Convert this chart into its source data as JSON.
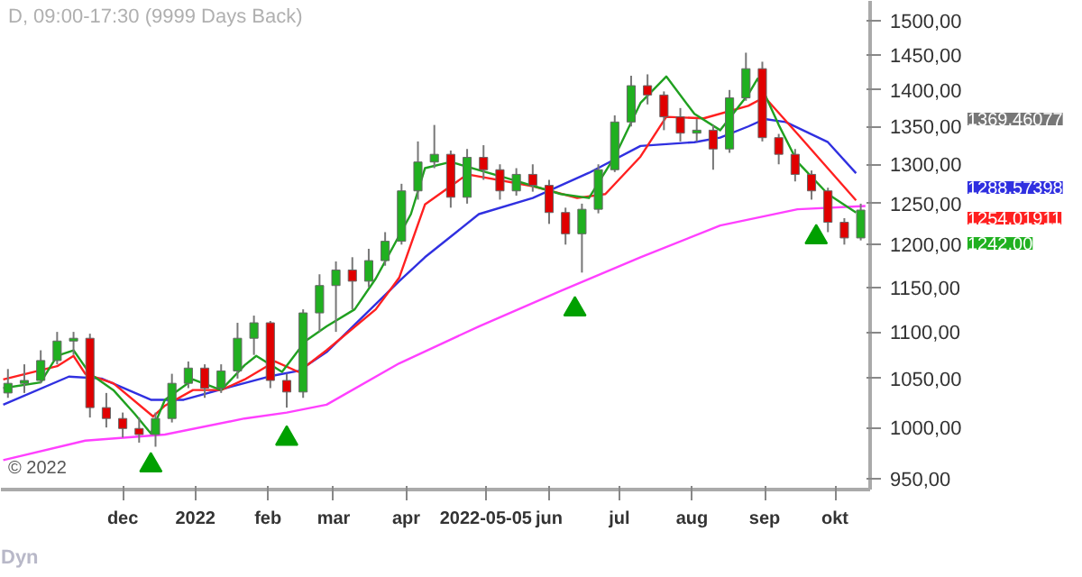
{
  "chart_data": {
    "type": "candlestick",
    "title": "D, 09:00-17:30 (9999 Days Back)",
    "log": true,
    "x": [
      "2021-10-13",
      "2021-10-20",
      "2021-10-27",
      "2021-11-03",
      "2021-11-10",
      "2021-11-17",
      "2021-11-24",
      "2021-12-01",
      "2021-12-08",
      "2021-12-15",
      "2021-12-22",
      "2021-12-29",
      "2022-01-05",
      "2022-01-12",
      "2022-01-19",
      "2022-01-26",
      "2022-02-02",
      "2022-02-09",
      "2022-02-16",
      "2022-02-23",
      "2022-03-02",
      "2022-03-09",
      "2022-03-16",
      "2022-03-23",
      "2022-03-30",
      "2022-04-06",
      "2022-04-13",
      "2022-04-20",
      "2022-04-27",
      "2022-05-04",
      "2022-05-11",
      "2022-05-18",
      "2022-05-25",
      "2022-06-01",
      "2022-06-08",
      "2022-06-15",
      "2022-06-22",
      "2022-06-29",
      "2022-07-06",
      "2022-07-13",
      "2022-07-20",
      "2022-07-27",
      "2022-08-03",
      "2022-08-10",
      "2022-08-17",
      "2022-08-24",
      "2022-08-31",
      "2022-09-07",
      "2022-09-14",
      "2022-09-21",
      "2022-09-28",
      "2022-10-05",
      "2022-10-12"
    ],
    "ohlc": [
      [
        1035,
        1060,
        1030,
        1045
      ],
      [
        1045,
        1065,
        1035,
        1048
      ],
      [
        1048,
        1080,
        1045,
        1069
      ],
      [
        1069,
        1100,
        1065,
        1090
      ],
      [
        1090,
        1100,
        1075,
        1093
      ],
      [
        1093,
        1098,
        1010,
        1020
      ],
      [
        1020,
        1035,
        1000,
        1009
      ],
      [
        1009,
        1015,
        990,
        999
      ],
      [
        999,
        1010,
        985,
        993
      ],
      [
        993,
        1015,
        981,
        1009
      ],
      [
        1009,
        1055,
        1005,
        1045
      ],
      [
        1045,
        1068,
        1040,
        1061
      ],
      [
        1061,
        1065,
        1030,
        1040
      ],
      [
        1040,
        1065,
        1035,
        1058
      ],
      [
        1058,
        1110,
        1050,
        1093
      ],
      [
        1093,
        1118,
        1075,
        1110
      ],
      [
        1110,
        1112,
        1040,
        1048
      ],
      [
        1048,
        1055,
        1020,
        1036
      ],
      [
        1036,
        1125,
        1030,
        1121
      ],
      [
        1121,
        1165,
        1100,
        1152
      ],
      [
        1152,
        1180,
        1100,
        1170
      ],
      [
        1170,
        1185,
        1125,
        1157
      ],
      [
        1157,
        1195,
        1150,
        1181
      ],
      [
        1181,
        1215,
        1175,
        1204
      ],
      [
        1204,
        1275,
        1200,
        1266
      ],
      [
        1266,
        1330,
        1255,
        1303
      ],
      [
        1303,
        1352,
        1295,
        1313
      ],
      [
        1313,
        1318,
        1245,
        1258
      ],
      [
        1258,
        1320,
        1250,
        1309
      ],
      [
        1309,
        1325,
        1280,
        1293
      ],
      [
        1293,
        1300,
        1255,
        1266
      ],
      [
        1266,
        1295,
        1260,
        1287
      ],
      [
        1287,
        1300,
        1265,
        1273
      ],
      [
        1273,
        1280,
        1225,
        1239
      ],
      [
        1239,
        1245,
        1200,
        1213
      ],
      [
        1213,
        1250,
        1167,
        1243
      ],
      [
        1243,
        1300,
        1238,
        1293
      ],
      [
        1293,
        1365,
        1290,
        1356
      ],
      [
        1356,
        1420,
        1350,
        1406
      ],
      [
        1406,
        1422,
        1380,
        1393
      ],
      [
        1393,
        1398,
        1345,
        1363
      ],
      [
        1363,
        1375,
        1330,
        1341
      ],
      [
        1341,
        1360,
        1330,
        1345
      ],
      [
        1345,
        1352,
        1293,
        1320
      ],
      [
        1320,
        1400,
        1315,
        1389
      ],
      [
        1389,
        1453,
        1385,
        1430
      ],
      [
        1430,
        1440,
        1330,
        1335
      ],
      [
        1335,
        1340,
        1300,
        1313
      ],
      [
        1313,
        1320,
        1278,
        1287
      ],
      [
        1287,
        1292,
        1255,
        1266
      ],
      [
        1266,
        1270,
        1215,
        1227
      ],
      [
        1227,
        1232,
        1200,
        1208
      ],
      [
        1208,
        1250,
        1205,
        1242
      ]
    ],
    "colors": [
      "#20b020",
      "#20b020",
      "#20b020",
      "#20b020",
      "#20b020",
      "#e00000",
      "#e00000",
      "#e00000",
      "#e00000",
      "#20b020",
      "#20b020",
      "#20b020",
      "#e00000",
      "#20b020",
      "#20b020",
      "#20b020",
      "#e00000",
      "#e00000",
      "#20b020",
      "#20b020",
      "#20b020",
      "#e00000",
      "#20b020",
      "#20b020",
      "#20b020",
      "#20b020",
      "#20b020",
      "#e00000",
      "#20b020",
      "#e00000",
      "#e00000",
      "#20b020",
      "#e00000",
      "#e00000",
      "#e00000",
      "#20b020",
      "#20b020",
      "#20b020",
      "#20b020",
      "#e00000",
      "#e00000",
      "#e00000",
      "#20b020",
      "#e00000",
      "#20b020",
      "#20b020",
      "#e00000",
      "#e00000",
      "#e00000",
      "#e00000",
      "#e00000",
      "#e00000",
      "#20b020"
    ],
    "series": [
      {
        "type": "line",
        "color": "#ff40ff",
        "x": [
          "2021-10-11",
          "2021-11-15",
          "2021-12-19",
          "2022-01-22",
          "2022-02-09",
          "2022-02-26",
          "2022-03-29",
          "2022-05-02",
          "2022-06-06",
          "2022-07-10",
          "2022-08-13",
          "2022-09-15",
          "2022-10-14"
        ],
        "values": [
          968,
          987,
          993,
          1009,
          1015,
          1023,
          1066,
          1106,
          1146,
          1185,
          1223,
          1243,
          1247
        ]
      },
      {
        "type": "line",
        "color": "#3030e0",
        "x": [
          "2021-10-11",
          "2021-11-08",
          "2021-11-22",
          "2021-12-13",
          "2021-12-27",
          "2022-01-17",
          "2022-02-03",
          "2022-02-14",
          "2022-02-26",
          "2022-03-29",
          "2022-04-09",
          "2022-05-02",
          "2022-05-25",
          "2022-06-18",
          "2022-07-10",
          "2022-08-02",
          "2022-08-13",
          "2022-08-25",
          "2022-09-01",
          "2022-09-10",
          "2022-09-28",
          "2022-10-10"
        ],
        "values": [
          1023,
          1052,
          1050,
          1028,
          1028,
          1042,
          1053,
          1058,
          1078,
          1157,
          1185,
          1237,
          1257,
          1289,
          1324,
          1329,
          1335,
          1350,
          1360,
          1356,
          1329,
          1288.57398
        ]
      },
      {
        "type": "line",
        "color": "#ff2020",
        "x": [
          "2021-10-11",
          "2021-11-03",
          "2021-11-10",
          "2021-11-15",
          "2021-11-27",
          "2021-12-14",
          "2021-12-19",
          "2021-12-31",
          "2022-01-12",
          "2022-01-22",
          "2022-02-04",
          "2022-02-14",
          "2022-02-26",
          "2022-03-19",
          "2022-03-29",
          "2022-04-09",
          "2022-04-27",
          "2022-05-25",
          "2022-06-13",
          "2022-06-25",
          "2022-07-10",
          "2022-07-21",
          "2022-08-06",
          "2022-08-25",
          "2022-09-01",
          "2022-09-15",
          "2022-10-10"
        ],
        "values": [
          1049,
          1063,
          1074,
          1055,
          1045,
          1011,
          1022,
          1038,
          1038,
          1049,
          1068,
          1057,
          1080,
          1125,
          1161,
          1249,
          1287,
          1272,
          1257,
          1262,
          1310,
          1363,
          1361,
          1378,
          1390,
          1340,
          1254.01911
        ]
      },
      {
        "type": "line",
        "color": "#20a020",
        "x": [
          "2021-10-11",
          "2021-10-27",
          "2021-11-03",
          "2021-11-10",
          "2021-11-17",
          "2021-11-27",
          "2021-12-06",
          "2021-12-13",
          "2021-12-19",
          "2021-12-31",
          "2022-01-12",
          "2022-01-22",
          "2022-01-27",
          "2022-02-07",
          "2022-02-17",
          "2022-02-26",
          "2022-03-10",
          "2022-03-19",
          "2022-04-03",
          "2022-04-09",
          "2022-04-20",
          "2022-05-13",
          "2022-06-06",
          "2022-06-18",
          "2022-06-29",
          "2022-07-10",
          "2022-07-21",
          "2022-08-02",
          "2022-08-13",
          "2022-08-25",
          "2022-08-29",
          "2022-09-07",
          "2022-09-15",
          "2022-09-28",
          "2022-10-10"
        ],
        "values": [
          1040,
          1046,
          1074,
          1080,
          1055,
          1038,
          1014,
          994,
          1028,
          1049,
          1038,
          1064,
          1074,
          1057,
          1090,
          1106,
          1125,
          1160,
          1237,
          1295,
          1303,
          1283,
          1262,
          1257,
          1310,
          1382,
          1419,
          1367,
          1345,
          1394,
          1416,
          1352,
          1303,
          1262,
          1239
        ]
      },
      {
        "type": "scatter",
        "marker": "triangle",
        "color": "#00a000",
        "x": [
          "2021-12-13",
          "2022-02-09",
          "2022-06-12",
          "2022-09-23"
        ],
        "values": [
          963,
          989,
          1125,
          1209
        ]
      }
    ],
    "xlim": [
      "2021-10-10",
      "2022-10-16"
    ],
    "xticks": [
      {
        "value": "2021-12-01",
        "label": "dec"
      },
      {
        "value": "2022-01-01",
        "label": "2022"
      },
      {
        "value": "2022-02-01",
        "label": "feb"
      },
      {
        "value": "2022-03-01",
        "label": "mar"
      },
      {
        "value": "2022-04-01",
        "label": "apr"
      },
      {
        "value": "2022-05-05",
        "label": "2022-05-05"
      },
      {
        "value": "2022-06-01",
        "label": "jun"
      },
      {
        "value": "2022-07-01",
        "label": "jul"
      },
      {
        "value": "2022-08-01",
        "label": "aug"
      },
      {
        "value": "2022-09-01",
        "label": "sep"
      },
      {
        "value": "2022-10-01",
        "label": "okt"
      }
    ],
    "ylim": [
      940,
      1530
    ],
    "yticks": [
      {
        "value": 950,
        "label": "950,00"
      },
      {
        "value": 1000,
        "label": "1000,00"
      },
      {
        "value": 1050,
        "label": "1050,00"
      },
      {
        "value": 1100,
        "label": "1100,00"
      },
      {
        "value": 1150,
        "label": "1150,00"
      },
      {
        "value": 1200,
        "label": "1200,00"
      },
      {
        "value": 1250,
        "label": "1250,00"
      },
      {
        "value": 1300,
        "label": "1300,00"
      },
      {
        "value": 1350,
        "label": "1350,00"
      },
      {
        "value": 1400,
        "label": "1400,00"
      },
      {
        "value": 1450,
        "label": "1450,00"
      },
      {
        "value": 1500,
        "label": "1500,00"
      }
    ],
    "annotations": [
      "© 2022",
      "Dyn",
      "1369,46077",
      "1288,57398",
      "1254,01911",
      "1242,00"
    ]
  }
}
